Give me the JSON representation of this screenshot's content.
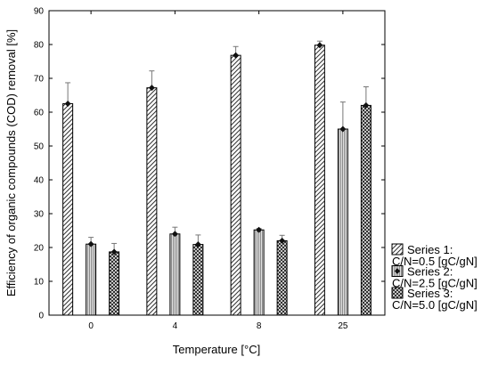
{
  "chart_data": {
    "type": "bar",
    "xlabel": "Temperature [°C]",
    "ylabel": "Efficiency of organic compounds (COD) removal [%]",
    "ylim": [
      0,
      90
    ],
    "yticks": [
      0,
      10,
      20,
      30,
      40,
      50,
      60,
      70,
      80,
      90
    ],
    "categories": [
      "0",
      "4",
      "8",
      "25"
    ],
    "grid": false,
    "legend_position": "right",
    "series": [
      {
        "name_line1": "Series 1:",
        "name_line2": "C/N=0.5 [gC/gN]",
        "pattern": "diagonal-hatch",
        "values": [
          62.5,
          67.2,
          76.8,
          79.8
        ],
        "errors": [
          6.2,
          5.0,
          2.6,
          1.2
        ]
      },
      {
        "name_line1": "Series 2:",
        "name_line2": "C/N=2.5 [gC/gN]",
        "pattern": "fine-vertical-hatch",
        "values": [
          21.0,
          24.0,
          25.2,
          55.0
        ],
        "errors": [
          2.0,
          2.0,
          0.4,
          8.0
        ]
      },
      {
        "name_line1": "Series 3:",
        "name_line2": "C/N=5.0 [gC/gN]",
        "pattern": "cross-hatch",
        "values": [
          18.7,
          20.9,
          22.0,
          62.0
        ],
        "errors": [
          2.5,
          2.8,
          1.6,
          5.5
        ]
      }
    ]
  }
}
